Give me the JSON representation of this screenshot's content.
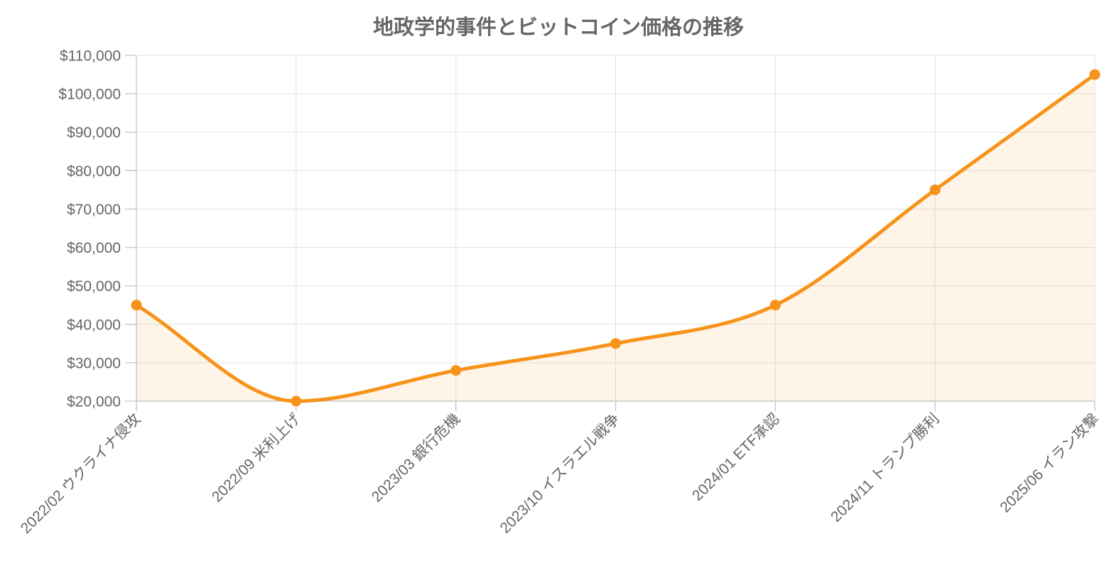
{
  "colors": {
    "line": "#F7931A",
    "fill": "rgba(247,147,26,0.10)",
    "title": "#666666",
    "tick": "#666666",
    "grid": "#e1e1e1"
  },
  "chart_data": {
    "type": "line",
    "title": "地政学的事件とビットコイン価格の推移",
    "categories": [
      "2022/02 ウクライナ侵攻",
      "2022/09 米利上げ",
      "2023/03 銀行危機",
      "2023/10 イスラエル戦争",
      "2024/01 ETF承認",
      "2024/11 トランプ勝利",
      "2025/06 イラン攻撃"
    ],
    "series": [
      {
        "values": [
          45000,
          20000,
          28000,
          35000,
          45000,
          75000,
          105000
        ]
      }
    ],
    "ylim": [
      20000,
      110000
    ],
    "y_ticks": [
      20000,
      30000,
      40000,
      50000,
      60000,
      70000,
      80000,
      90000,
      100000,
      110000
    ],
    "y_tick_labels": [
      "$20,000",
      "$30,000",
      "$40,000",
      "$50,000",
      "$60,000",
      "$70,000",
      "$80,000",
      "$90,000",
      "$100,000",
      "$110,000"
    ],
    "xlabel": "",
    "ylabel": "",
    "grid": true,
    "legend": "none",
    "area_fill": true,
    "smooth": true
  }
}
